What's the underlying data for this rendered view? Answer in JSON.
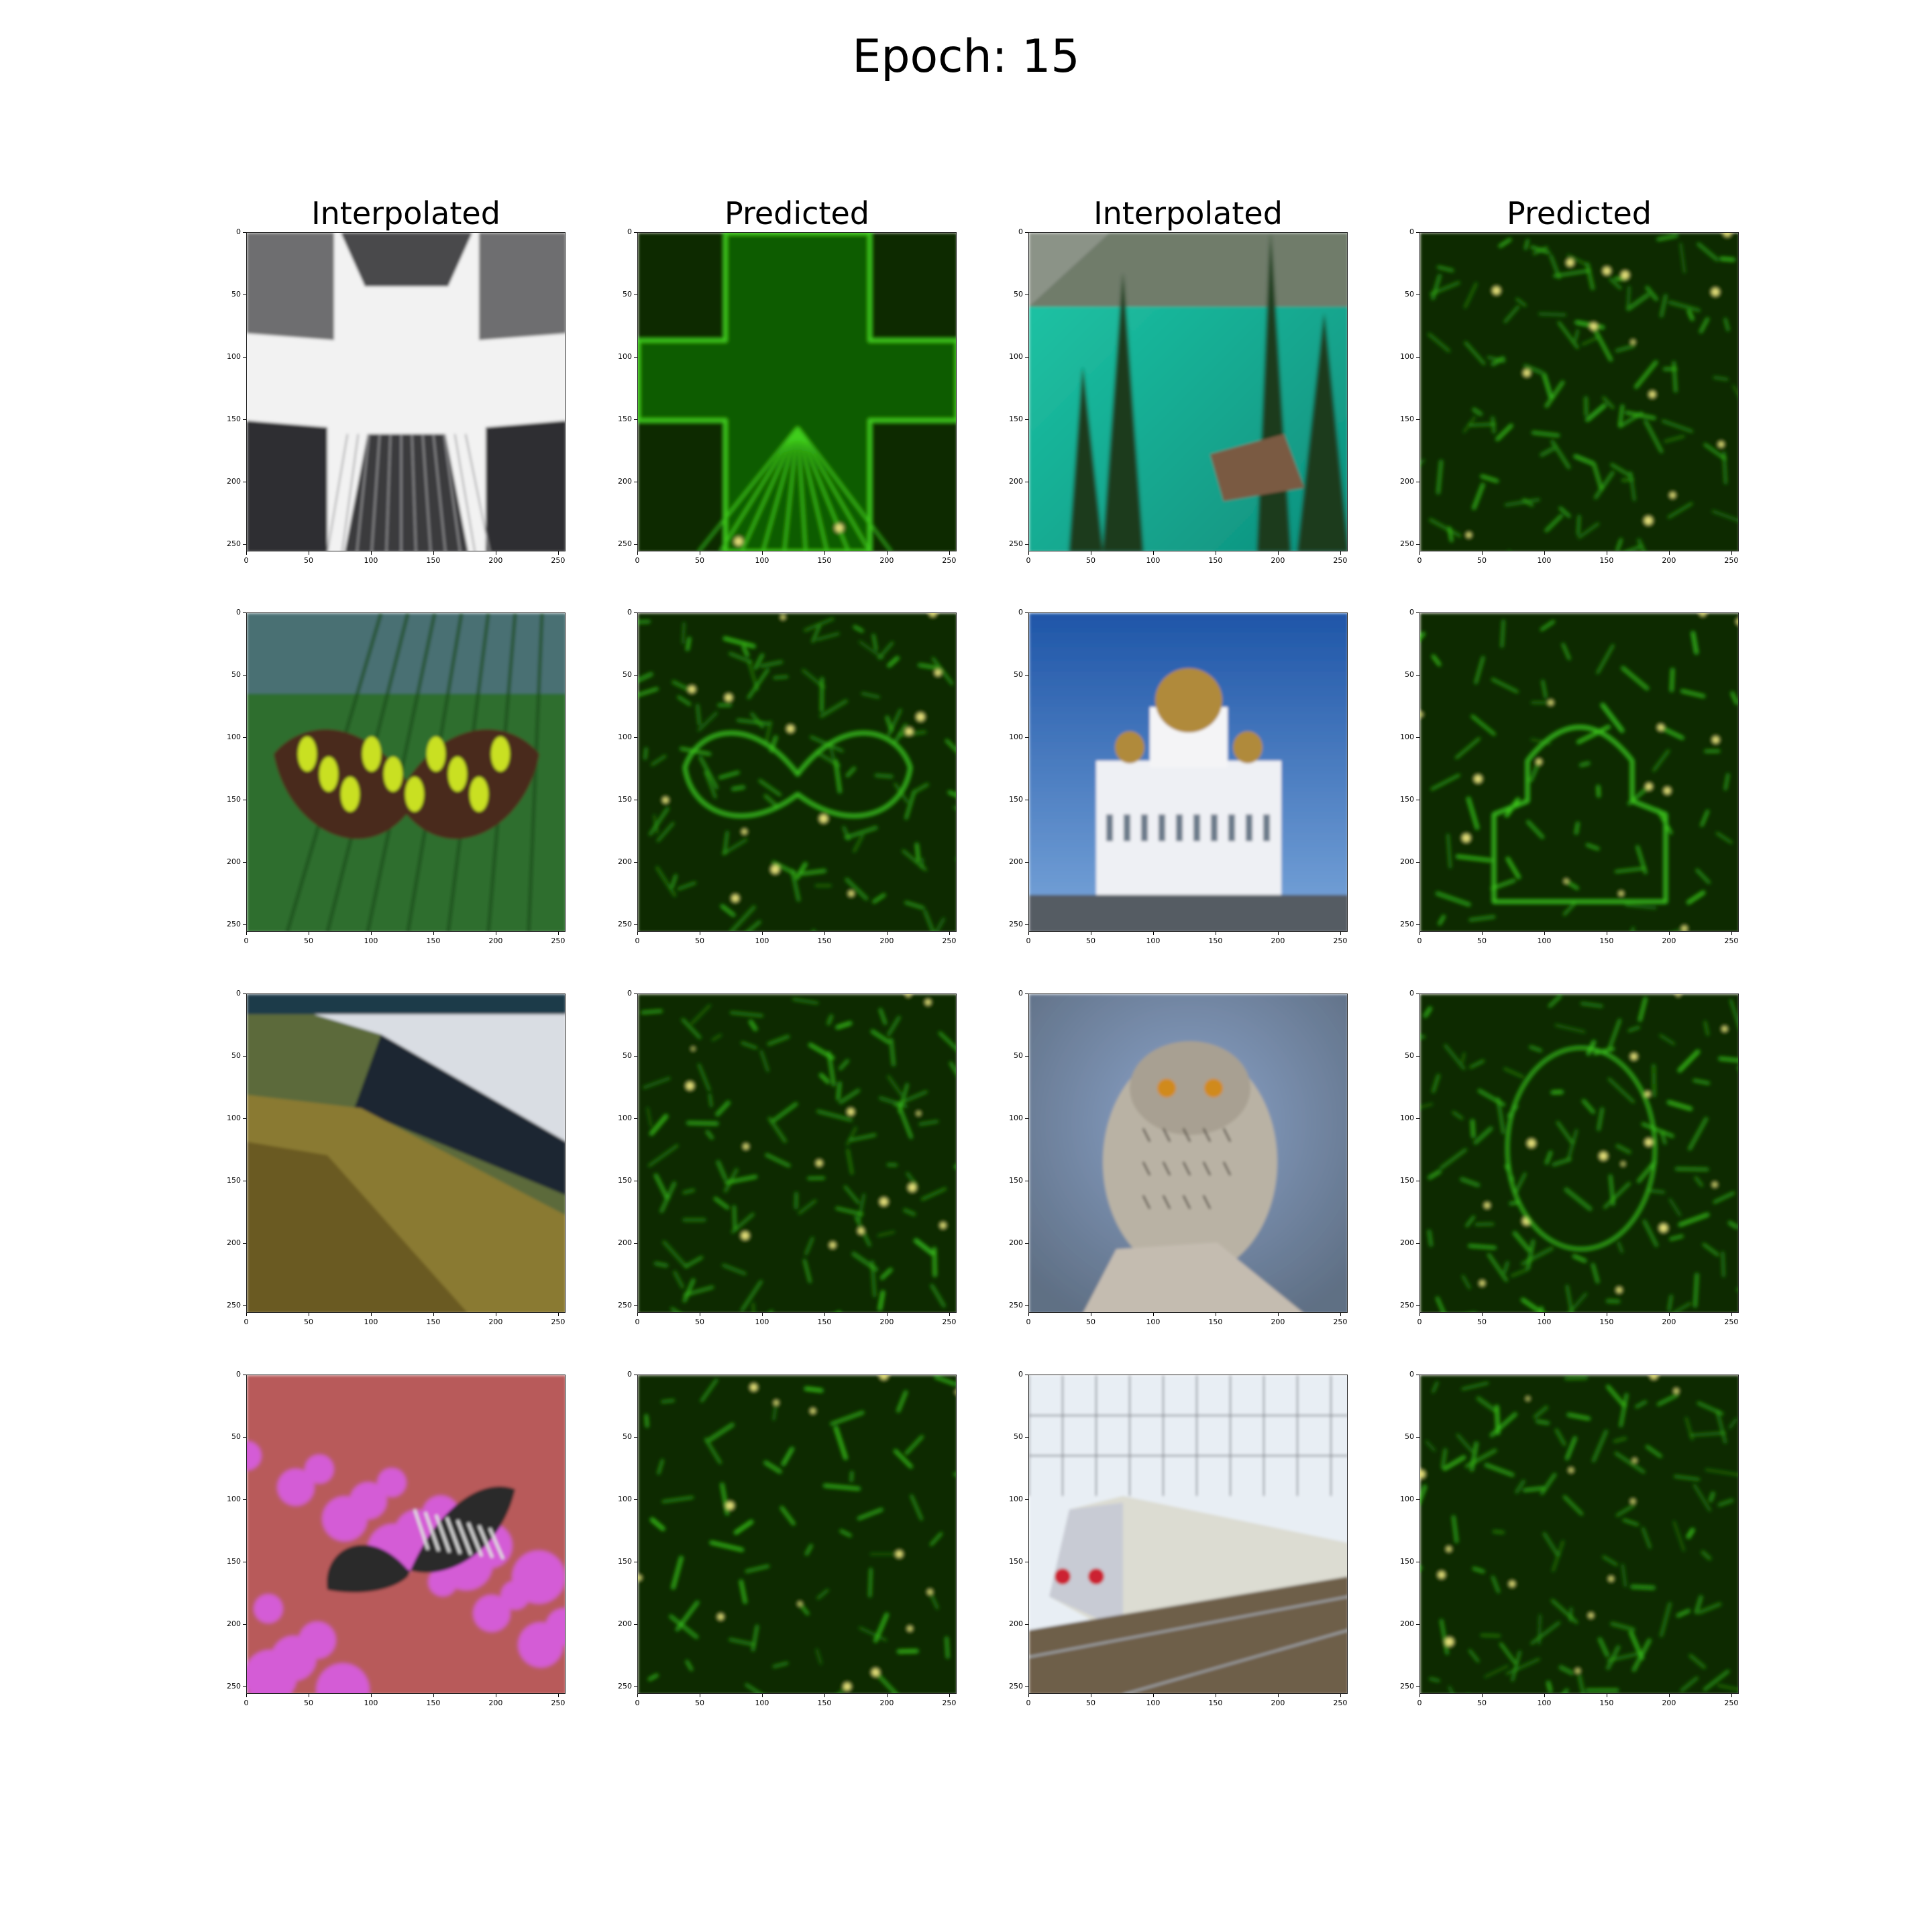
{
  "figure": {
    "suptitle": "Epoch: 15",
    "column_titles": [
      "Interpolated",
      "Predicted",
      "Interpolated",
      "Predicted"
    ],
    "tick_labels": [
      "0",
      "50",
      "100",
      "150",
      "200",
      "250"
    ],
    "tick_values": [
      0,
      50,
      100,
      150,
      200,
      250
    ],
    "image_size": 256
  },
  "panels": [
    {
      "row": 0,
      "col": 0,
      "kind": "interpolated",
      "subject": "skyscrapers-looking-up"
    },
    {
      "row": 0,
      "col": 1,
      "kind": "predicted",
      "subject": "skyscrapers-looking-up"
    },
    {
      "row": 0,
      "col": 2,
      "kind": "interpolated",
      "subject": "turquoise-lake-with-pines"
    },
    {
      "row": 0,
      "col": 3,
      "kind": "predicted",
      "subject": "turquoise-lake-with-pines"
    },
    {
      "row": 1,
      "col": 0,
      "kind": "interpolated",
      "subject": "green-butterfly-on-leaf"
    },
    {
      "row": 1,
      "col": 1,
      "kind": "predicted",
      "subject": "green-butterfly-on-leaf"
    },
    {
      "row": 1,
      "col": 2,
      "kind": "interpolated",
      "subject": "white-cathedral-golden-domes"
    },
    {
      "row": 1,
      "col": 3,
      "kind": "predicted",
      "subject": "white-cathedral-golden-domes"
    },
    {
      "row": 2,
      "col": 0,
      "kind": "interpolated",
      "subject": "coastal-cliff-and-surf"
    },
    {
      "row": 2,
      "col": 1,
      "kind": "predicted",
      "subject": "coastal-cliff-and-surf"
    },
    {
      "row": 2,
      "col": 2,
      "kind": "interpolated",
      "subject": "owl-on-rock"
    },
    {
      "row": 2,
      "col": 3,
      "kind": "predicted",
      "subject": "owl-on-rock"
    },
    {
      "row": 3,
      "col": 0,
      "kind": "interpolated",
      "subject": "swallowtail-on-pink-flowers"
    },
    {
      "row": 3,
      "col": 1,
      "kind": "predicted",
      "subject": "swallowtail-on-pink-flowers"
    },
    {
      "row": 3,
      "col": 2,
      "kind": "interpolated",
      "subject": "white-train-on-tracks"
    },
    {
      "row": 3,
      "col": 3,
      "kind": "predicted",
      "subject": "white-train-on-tracks"
    }
  ],
  "colors": {
    "predicted_background": "#0a2a00",
    "predicted_edge": "#3fcf1a",
    "predicted_highlight": "#e6e07a"
  }
}
